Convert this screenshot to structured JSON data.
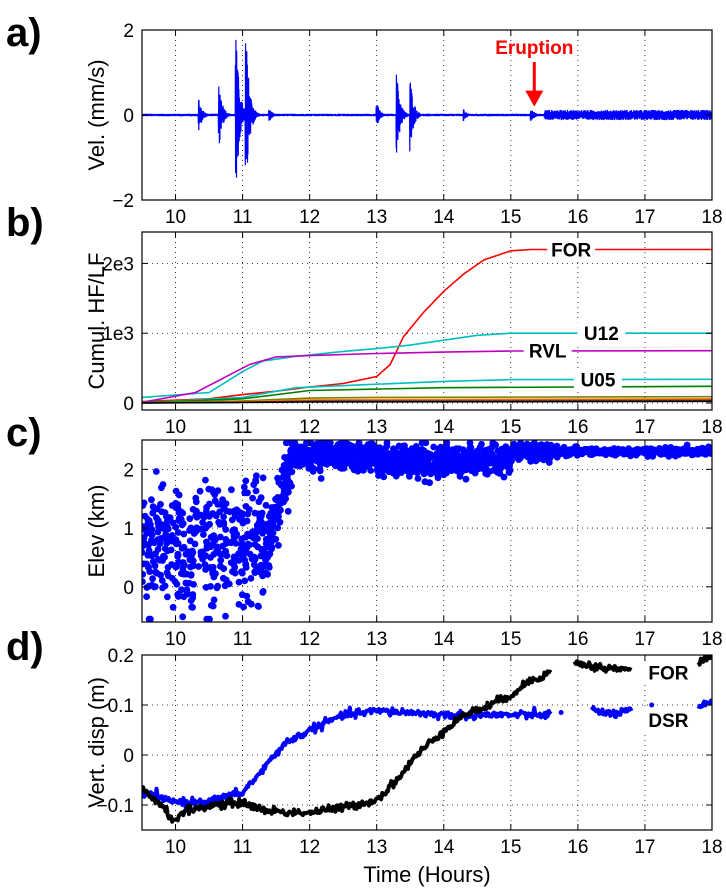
{
  "x_axis_label": "Time (Hours)",
  "colors": {
    "blue": "#0000ff",
    "red": "#ff0000",
    "cyan": "#00bfbf",
    "magenta": "#bf00bf",
    "black": "#000000"
  },
  "chart_data": [
    {
      "id": "a",
      "panel_label": "a)",
      "type": "line",
      "ylabel": "Vel. (mm/s)",
      "xlim": [
        9.5,
        18
      ],
      "ylim": [
        -2,
        2
      ],
      "xticks": [
        "10",
        "11",
        "12",
        "13",
        "14",
        "15",
        "16",
        "17",
        "18"
      ],
      "yticks": [
        "−2",
        "0",
        "2"
      ],
      "grid": true,
      "annotation": {
        "text": "Eruption",
        "x": 15.35,
        "y": 0.15
      },
      "bursts": [
        {
          "t": 10.35,
          "amp": 0.4
        },
        {
          "t": 10.65,
          "amp": 0.8
        },
        {
          "t": 10.9,
          "amp": 2.0
        },
        {
          "t": 11.05,
          "amp": 2.0
        },
        {
          "t": 11.4,
          "amp": 0.15
        },
        {
          "t": 13.0,
          "amp": 0.3
        },
        {
          "t": 13.3,
          "amp": 1.0
        },
        {
          "t": 13.5,
          "amp": 0.9
        },
        {
          "t": 14.3,
          "amp": 0.15
        },
        {
          "t": 15.3,
          "amp": 0.2
        }
      ],
      "background_amplitude": [
        {
          "from": 9.5,
          "to": 15.5,
          "amp": 0.03
        },
        {
          "from": 15.5,
          "to": 18,
          "amp": 0.12
        }
      ]
    },
    {
      "id": "b",
      "panel_label": "b)",
      "type": "line",
      "ylabel": "Cumul. HF/LF",
      "xlim": [
        9.5,
        18
      ],
      "ylim": [
        -100,
        2450
      ],
      "xticks": [
        "10",
        "11",
        "12",
        "13",
        "14",
        "15",
        "16",
        "17",
        "18"
      ],
      "yticks": [
        {
          "v": 0,
          "label": "0"
        },
        {
          "v": 1000,
          "label": "1e3"
        },
        {
          "v": 2000,
          "label": "2e3"
        }
      ],
      "grid": true,
      "series": [
        {
          "name": "FOR",
          "color": "red",
          "points": [
            [
              9.5,
              20
            ],
            [
              10.5,
              60
            ],
            [
              11,
              120
            ],
            [
              11.5,
              170
            ],
            [
              12,
              230
            ],
            [
              12.5,
              280
            ],
            [
              13,
              380
            ],
            [
              13.2,
              550
            ],
            [
              13.4,
              950
            ],
            [
              13.7,
              1300
            ],
            [
              14,
              1600
            ],
            [
              14.3,
              1850
            ],
            [
              14.6,
              2050
            ],
            [
              15,
              2180
            ],
            [
              15.3,
              2200
            ],
            [
              18,
              2200
            ]
          ]
        },
        {
          "name": "U12",
          "color": "cyan",
          "points": [
            [
              9.5,
              80
            ],
            [
              10.5,
              150
            ],
            [
              11,
              450
            ],
            [
              11.3,
              600
            ],
            [
              11.8,
              670
            ],
            [
              12.5,
              740
            ],
            [
              13,
              780
            ],
            [
              13.5,
              830
            ],
            [
              14,
              900
            ],
            [
              14.5,
              970
            ],
            [
              15,
              1000
            ],
            [
              18,
              1000
            ]
          ]
        },
        {
          "name": "RVL",
          "color": "magenta",
          "points": [
            [
              9.5,
              10
            ],
            [
              10.3,
              150
            ],
            [
              10.8,
              400
            ],
            [
              11.1,
              550
            ],
            [
              11.5,
              660
            ],
            [
              12,
              680
            ],
            [
              13,
              710
            ],
            [
              14,
              730
            ],
            [
              15,
              745
            ],
            [
              18,
              750
            ]
          ]
        },
        {
          "name": "U05",
          "color": "cyan",
          "points": [
            [
              9.5,
              5
            ],
            [
              11,
              80
            ],
            [
              11.8,
              220
            ],
            [
              13,
              270
            ],
            [
              14,
              310
            ],
            [
              15,
              335
            ],
            [
              18,
              340
            ]
          ]
        },
        {
          "name": "",
          "color": "#007f00",
          "points": [
            [
              9.5,
              5
            ],
            [
              11,
              60
            ],
            [
              12,
              180
            ],
            [
              13,
              200
            ],
            [
              14,
              220
            ],
            [
              18,
              240
            ]
          ]
        },
        {
          "name": "",
          "color": "#7f7f00",
          "points": [
            [
              9.5,
              0
            ],
            [
              11,
              30
            ],
            [
              12,
              70
            ],
            [
              13,
              80
            ],
            [
              18,
              90
            ]
          ]
        },
        {
          "name": "",
          "color": "#ff7f00",
          "points": [
            [
              9.5,
              0
            ],
            [
              11,
              20
            ],
            [
              12,
              45
            ],
            [
              18,
              60
            ]
          ]
        },
        {
          "name": "",
          "color": "#7f3f3f",
          "points": [
            [
              9.5,
              0
            ],
            [
              11,
              10
            ],
            [
              12,
              30
            ],
            [
              18,
              40
            ]
          ]
        },
        {
          "name": "",
          "color": "#000000",
          "points": [
            [
              9.5,
              0
            ],
            [
              12,
              15
            ],
            [
              18,
              25
            ]
          ]
        }
      ],
      "labels": [
        {
          "text": "FOR",
          "x": 15.9,
          "y": 2200
        },
        {
          "text": "U12",
          "x": 16.35,
          "y": 1000
        },
        {
          "text": "RVL",
          "x": 15.55,
          "y": 750
        },
        {
          "text": "U05",
          "x": 16.3,
          "y": 340
        }
      ]
    },
    {
      "id": "c",
      "panel_label": "c)",
      "type": "scatter",
      "ylabel": "Elev (km)",
      "xlim": [
        9.5,
        18
      ],
      "ylim": [
        -0.6,
        2.5
      ],
      "xticks": [
        "10",
        "11",
        "12",
        "13",
        "14",
        "15",
        "16",
        "17",
        "18"
      ],
      "yticks": [
        "0",
        "1",
        "2"
      ],
      "grid": true,
      "color": "blue",
      "segments": [
        {
          "from": 9.5,
          "to": 11.35,
          "mean": 0.7,
          "spread": 0.9,
          "n": 420
        },
        {
          "from": 11.35,
          "to": 11.75,
          "mean_start": 0.6,
          "mean_end": 2.3,
          "spread": 0.4,
          "n": 120
        },
        {
          "from": 11.75,
          "to": 13.0,
          "mean": 2.25,
          "spread": 0.18,
          "n": 380
        },
        {
          "from": 13.0,
          "to": 15.0,
          "mean": 2.15,
          "spread": 0.2,
          "n": 520
        },
        {
          "from": 15.0,
          "to": 15.7,
          "mean": 2.3,
          "spread": 0.12,
          "n": 160
        },
        {
          "from": 15.7,
          "to": 18,
          "mean": 2.3,
          "spread": 0.05,
          "n": 340
        }
      ]
    },
    {
      "id": "d",
      "panel_label": "d)",
      "type": "line",
      "ylabel": "Vert. disp (m)",
      "xlim": [
        9.5,
        18
      ],
      "ylim": [
        -0.15,
        0.2
      ],
      "xticks": [
        "10",
        "11",
        "12",
        "13",
        "14",
        "15",
        "16",
        "17",
        "18"
      ],
      "yticks": [
        {
          "v": -0.1,
          "label": "−0.1"
        },
        {
          "v": 0,
          "label": "0"
        },
        {
          "v": 0.1,
          "label": "0.1"
        },
        {
          "v": 0.2,
          "label": "0.2"
        }
      ],
      "grid": true,
      "series": [
        {
          "name": "DSR",
          "color": "blue",
          "segments": [
            [
              [
                9.5,
                -0.08
              ],
              [
                9.7,
                -0.08
              ],
              [
                9.8,
                -0.09
              ],
              [
                10.2,
                -0.095
              ],
              [
                10.6,
                -0.09
              ],
              [
                11,
                -0.075
              ],
              [
                11.3,
                -0.03
              ],
              [
                11.6,
                0.02
              ],
              [
                12,
                0.05
              ],
              [
                12.5,
                0.08
              ],
              [
                13,
                0.088
              ],
              [
                13.5,
                0.085
              ],
              [
                14,
                0.08
              ],
              [
                14.5,
                0.08
              ],
              [
                15,
                0.08
              ],
              [
                15.4,
                0.08
              ],
              [
                15.6,
                0.082
              ]
            ],
            [
              [
                15.75,
                0.085
              ]
            ],
            [
              [
                16.2,
                0.09
              ],
              [
                16.5,
                0.082
              ],
              [
                16.8,
                0.088
              ]
            ],
            [
              [
                17.1,
                0.1
              ]
            ],
            [
              [
                17.8,
                0.095
              ],
              [
                18,
                0.105
              ]
            ]
          ]
        },
        {
          "name": "FOR",
          "color": "black",
          "segments": [
            [
              [
                9.5,
                -0.07
              ],
              [
                9.8,
                -0.1
              ],
              [
                9.95,
                -0.13
              ],
              [
                10.2,
                -0.11
              ],
              [
                10.6,
                -0.1
              ],
              [
                11,
                -0.095
              ],
              [
                11.3,
                -0.11
              ],
              [
                11.7,
                -0.115
              ],
              [
                12,
                -0.115
              ],
              [
                12.5,
                -0.105
              ],
              [
                13,
                -0.09
              ],
              [
                13.3,
                -0.05
              ],
              [
                13.6,
                0.0
              ],
              [
                14,
                0.05
              ],
              [
                14.3,
                0.08
              ],
              [
                14.7,
                0.1
              ],
              [
                15,
                0.12
              ],
              [
                15.3,
                0.15
              ],
              [
                15.6,
                0.165
              ]
            ],
            [
              [
                15.95,
                0.185
              ],
              [
                16.3,
                0.175
              ],
              [
                16.8,
                0.17
              ]
            ],
            [
              [
                17.8,
                0.185
              ],
              [
                18,
                0.2
              ]
            ]
          ]
        }
      ],
      "labels": [
        {
          "text": "FOR",
          "x": 17.35,
          "y": 0.165
        },
        {
          "text": "DSR",
          "x": 17.35,
          "y": 0.07
        }
      ]
    }
  ]
}
